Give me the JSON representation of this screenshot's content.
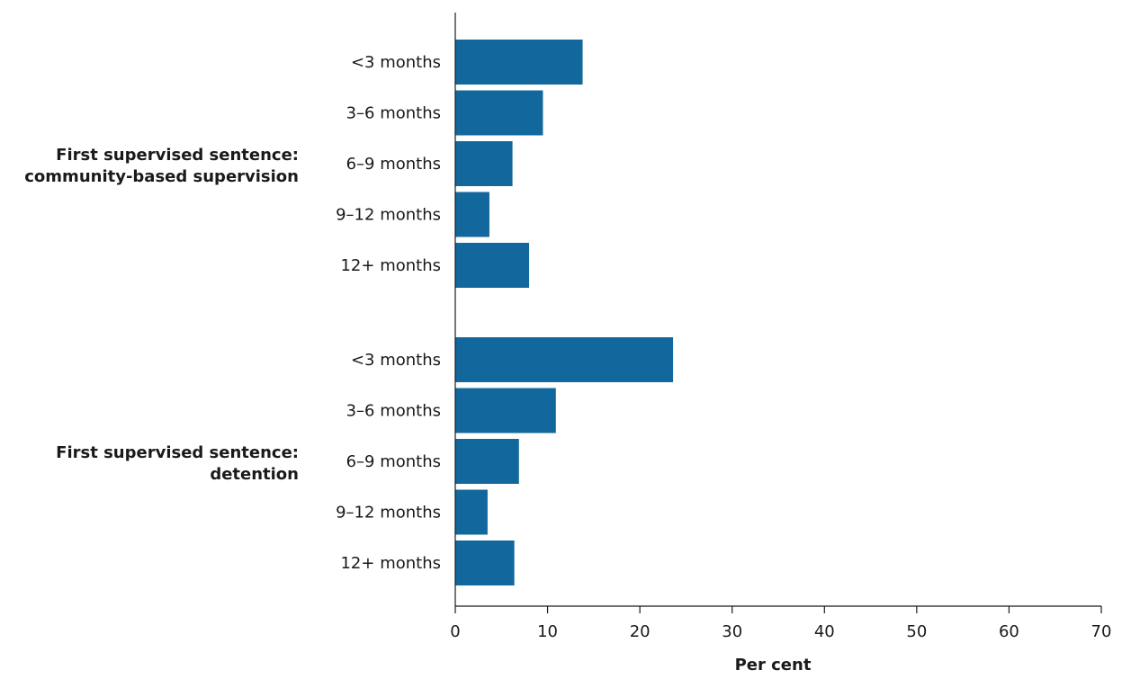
{
  "chart_data": {
    "type": "bar",
    "orientation": "horizontal",
    "xlabel": "Per cent",
    "ylabel": "",
    "xlim": [
      0,
      70
    ],
    "x_ticks": [
      0,
      10,
      20,
      30,
      40,
      50,
      60,
      70
    ],
    "grid": false,
    "legend": "none",
    "colors": {
      "bar": "#12689C",
      "axis": "#1a1a1a"
    },
    "groups": [
      {
        "label": "First supervised sentence: community-based supervision",
        "label_lines": [
          "First supervised sentence:",
          "community-based supervision"
        ],
        "categories": [
          "<3 months",
          "3–6 months",
          "6–9 months",
          "9–12 months",
          "12+ months"
        ],
        "values": [
          13.8,
          9.5,
          6.2,
          3.7,
          8.0
        ]
      },
      {
        "label": "First supervised sentence: detention",
        "label_lines": [
          "First supervised sentence:",
          "detention"
        ],
        "categories": [
          "<3 months",
          "3–6 months",
          "6–9 months",
          "9–12 months",
          "12+ months"
        ],
        "values": [
          23.6,
          10.9,
          6.9,
          3.5,
          6.4
        ]
      }
    ]
  }
}
